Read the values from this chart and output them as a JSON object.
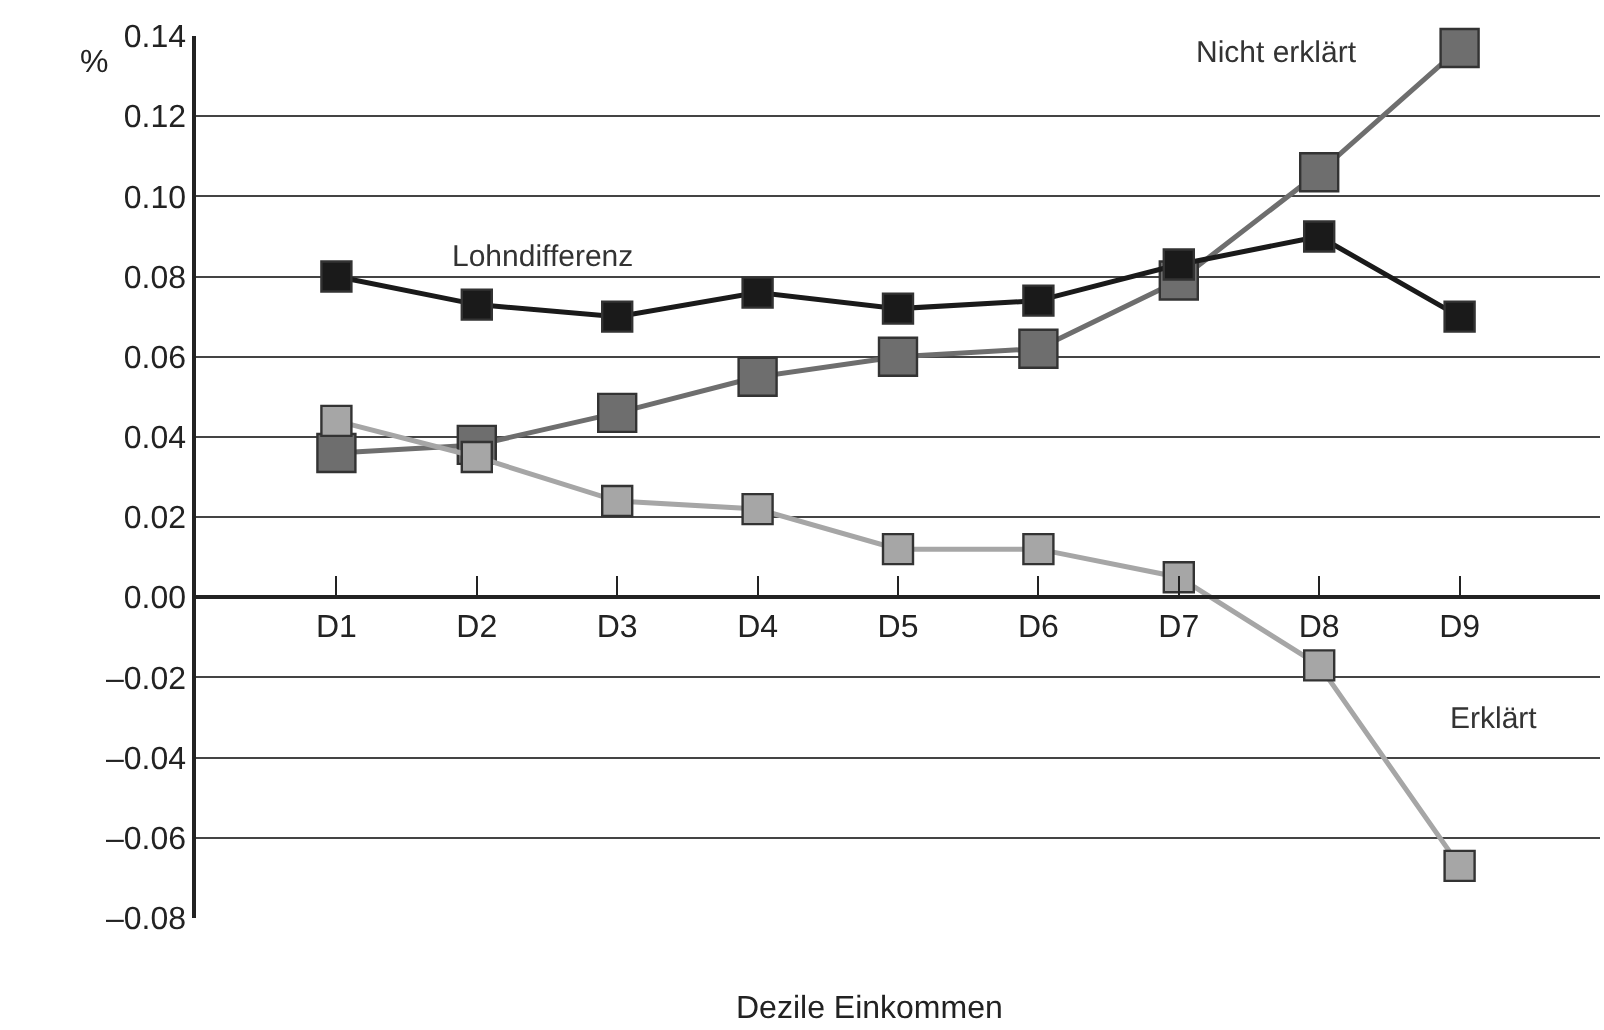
{
  "chart_data": {
    "type": "line",
    "xlabel": "Dezile Einkommen",
    "ylabel": "%",
    "categories": [
      "D1",
      "D2",
      "D3",
      "D4",
      "D5",
      "D6",
      "D7",
      "D8",
      "D9"
    ],
    "series": [
      {
        "name": "Lohndifferenz",
        "color": "#1a1a1a",
        "values": [
          0.08,
          0.073,
          0.07,
          0.076,
          0.072,
          0.074,
          0.083,
          0.09,
          0.07
        ]
      },
      {
        "name": "Nicht erklärt",
        "color": "#6e6e6e",
        "values": [
          0.036,
          0.038,
          0.046,
          0.055,
          0.06,
          0.062,
          0.079,
          0.106,
          0.137
        ]
      },
      {
        "name": "Erklärt",
        "color": "#a6a6a6",
        "values": [
          0.044,
          0.035,
          0.024,
          0.022,
          0.012,
          0.012,
          0.005,
          -0.017,
          -0.067
        ]
      }
    ],
    "ylim": [
      -0.08,
      0.14
    ],
    "yticks": [
      {
        "value": -0.08,
        "label": "–0.08"
      },
      {
        "value": -0.06,
        "label": "–0.06"
      },
      {
        "value": -0.04,
        "label": "–0.04"
      },
      {
        "value": -0.02,
        "label": "–0.02"
      },
      {
        "value": 0,
        "label": "0.00"
      },
      {
        "value": 0.02,
        "label": "0.02"
      },
      {
        "value": 0.04,
        "label": "0.04"
      },
      {
        "value": 0.06,
        "label": "0.06"
      },
      {
        "value": 0.08,
        "label": "0.08"
      },
      {
        "value": 0.1,
        "label": "0.10"
      },
      {
        "value": 0.12,
        "label": "0.12"
      },
      {
        "value": 0.14,
        "label": "0.14"
      }
    ],
    "grid": "y",
    "legend": false,
    "marker": "square",
    "line_style": "solid"
  }
}
